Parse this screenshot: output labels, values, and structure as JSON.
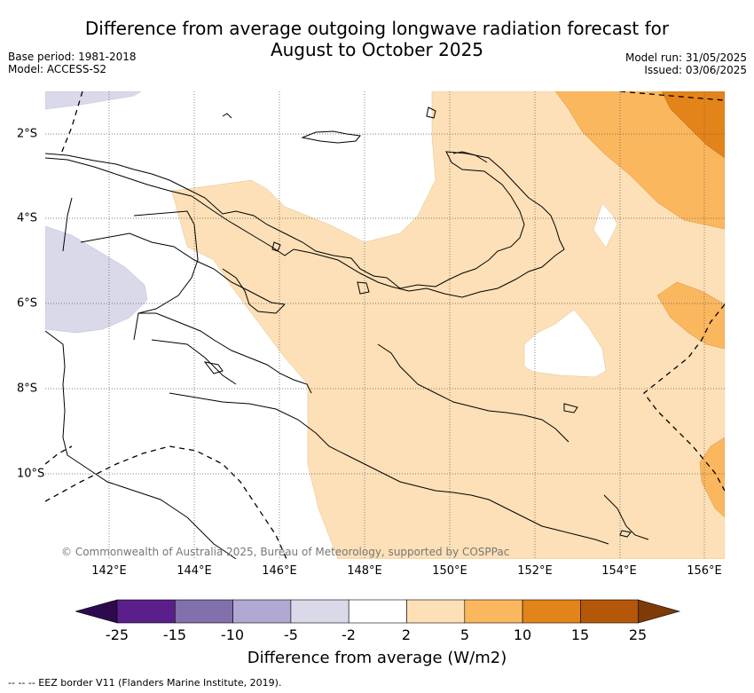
{
  "title_line1": "Difference from average outgoing longwave radiation forecast for",
  "title_line2": "August to October 2025",
  "meta_left": {
    "base_period": "Base period: 1981-2018",
    "model": "Model: ACCESS-S2"
  },
  "meta_right": {
    "model_run": "Model run: 31/05/2025",
    "issued": "Issued: 03/06/2025"
  },
  "lon_ticks": [
    "142°E",
    "144°E",
    "146°E",
    "148°E",
    "150°E",
    "152°E",
    "154°E",
    "156°E"
  ],
  "lat_ticks": [
    "2°S",
    "4°S",
    "6°S",
    "8°S",
    "10°S"
  ],
  "copyright": "© Commonwealth of Australia 2025, Bureau of Meteorology, supported by COSPPac",
  "colorbar": {
    "labels": [
      "-25",
      "-15",
      "-10",
      "-5",
      "-2",
      "2",
      "5",
      "10",
      "15",
      "25"
    ],
    "colors": [
      "#2d0a4e",
      "#5a1f8a",
      "#8170ab",
      "#b1a9d1",
      "#d9d9ea",
      "#ffffff",
      "#fde0b7",
      "#fbb75e",
      "#e3841a",
      "#b45709",
      "#7e3b07"
    ],
    "title": "Difference from average (W/m2)"
  },
  "footnote": "-- -- -- EEZ border V11 (Flanders Marine Institute, 2019).",
  "map_colors": {
    "light_orange": "#fde0b7",
    "mid_orange": "#fbb75e",
    "dark_orange": "#e3841a",
    "light_purple": "#d9d9ea"
  }
}
